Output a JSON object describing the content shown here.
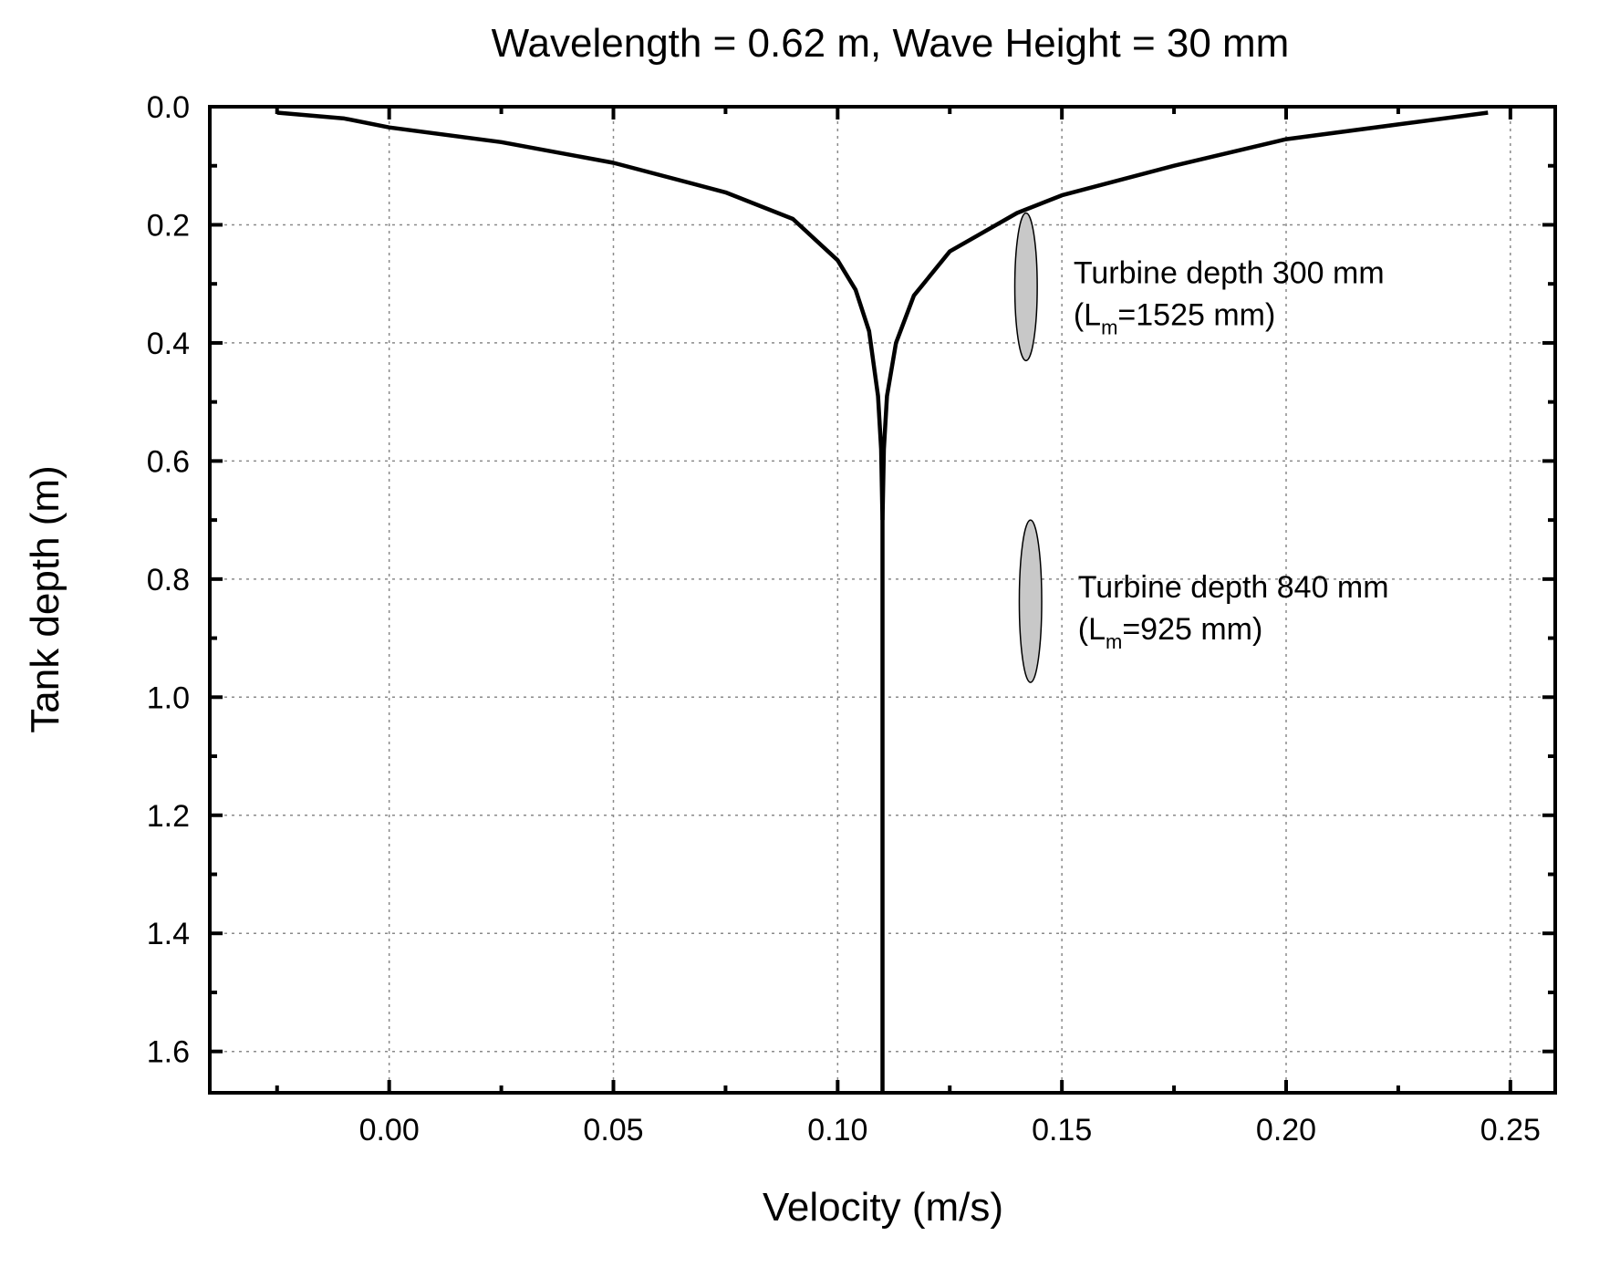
{
  "chart_data": {
    "type": "line",
    "title": "Wavelength = 0.62 m, Wave Height = 30 mm",
    "xlabel": "Velocity (m/s)",
    "ylabel": "Tank depth (m)",
    "xlim": [
      -0.04,
      0.26
    ],
    "ylim": [
      0.0,
      1.67
    ],
    "y_inverted": true,
    "grid": true,
    "x_ticks": [
      0.0,
      0.05,
      0.1,
      0.15,
      0.2,
      0.25
    ],
    "x_tick_labels": [
      "0.00",
      "0.05",
      "0.10",
      "0.15",
      "0.20",
      "0.25"
    ],
    "x_minor_ticks": [
      -0.025,
      0.025,
      0.075,
      0.125,
      0.175,
      0.225
    ],
    "y_ticks": [
      0.0,
      0.2,
      0.4,
      0.6,
      0.8,
      1.0,
      1.2,
      1.4,
      1.6
    ],
    "y_tick_labels": [
      "0.0",
      "0.2",
      "0.4",
      "0.6",
      "0.8",
      "1.0",
      "1.2",
      "1.4",
      "1.6"
    ],
    "y_minor_ticks": [
      0.1,
      0.3,
      0.5,
      0.7,
      0.9,
      1.1,
      1.3,
      1.5
    ],
    "series": [
      {
        "name": "velocity-profile-left-branch",
        "points": [
          {
            "x": -0.025,
            "y": 0.01
          },
          {
            "x": -0.01,
            "y": 0.02
          },
          {
            "x": 0.0,
            "y": 0.035
          },
          {
            "x": 0.025,
            "y": 0.06
          },
          {
            "x": 0.05,
            "y": 0.095
          },
          {
            "x": 0.075,
            "y": 0.145
          },
          {
            "x": 0.09,
            "y": 0.19
          },
          {
            "x": 0.1,
            "y": 0.26
          },
          {
            "x": 0.104,
            "y": 0.31
          },
          {
            "x": 0.107,
            "y": 0.38
          },
          {
            "x": 0.109,
            "y": 0.49
          },
          {
            "x": 0.1097,
            "y": 0.58
          },
          {
            "x": 0.11,
            "y": 0.7
          },
          {
            "x": 0.11,
            "y": 1.67
          }
        ]
      },
      {
        "name": "velocity-profile-right-branch",
        "points": [
          {
            "x": 0.11,
            "y": 0.7
          },
          {
            "x": 0.1103,
            "y": 0.58
          },
          {
            "x": 0.111,
            "y": 0.49
          },
          {
            "x": 0.113,
            "y": 0.4
          },
          {
            "x": 0.117,
            "y": 0.32
          },
          {
            "x": 0.125,
            "y": 0.245
          },
          {
            "x": 0.14,
            "y": 0.18
          },
          {
            "x": 0.15,
            "y": 0.15
          },
          {
            "x": 0.175,
            "y": 0.1
          },
          {
            "x": 0.2,
            "y": 0.055
          },
          {
            "x": 0.225,
            "y": 0.03
          },
          {
            "x": 0.245,
            "y": 0.01
          }
        ]
      }
    ],
    "annotations": [
      {
        "name": "turbine-300",
        "x": 0.142,
        "y": 0.31,
        "y_span": [
          0.18,
          0.43
        ],
        "x_halfwidth": 0.0025,
        "line1": "Turbine depth 300 mm",
        "line2_prefix": "(L",
        "line2_sub": "m",
        "line2_suffix": "=1525 mm)"
      },
      {
        "name": "turbine-840",
        "x": 0.143,
        "y": 0.84,
        "y_span": [
          0.7,
          0.975
        ],
        "x_halfwidth": 0.0025,
        "line1": "Turbine depth 840 mm",
        "line2_prefix": "(L",
        "line2_sub": "m",
        "line2_suffix": "=925 mm)"
      }
    ]
  }
}
